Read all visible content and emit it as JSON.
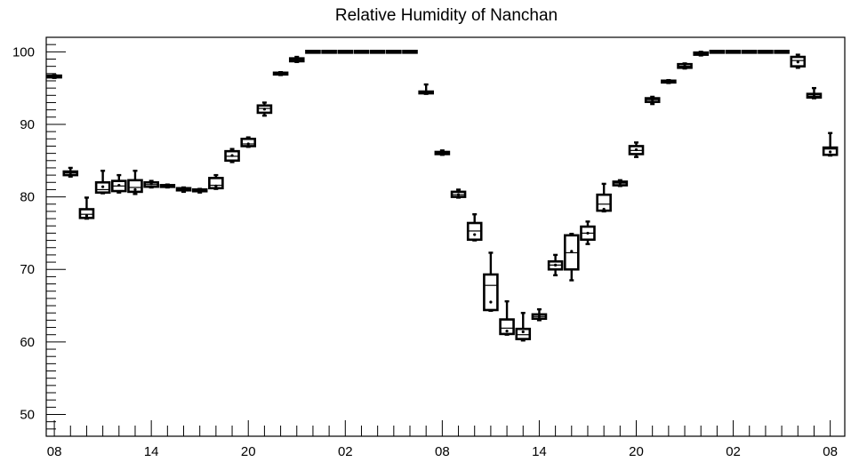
{
  "chart_data": {
    "type": "boxplot",
    "title": "Relative Humidity of Nanchan",
    "xlabel": "",
    "ylabel": "",
    "ylim": [
      47,
      102
    ],
    "yticks": [
      50,
      60,
      70,
      80,
      90,
      100
    ],
    "x_tick_labels": [
      "08",
      "14",
      "20",
      "02",
      "08",
      "14",
      "20",
      "02",
      "08"
    ],
    "x_tick_hours": [
      0,
      6,
      12,
      18,
      24,
      30,
      36,
      42,
      48
    ],
    "xlim": [
      -0.5,
      48.9
    ],
    "grid": false,
    "boxes": [
      {
        "hour": 0,
        "min": 96.4,
        "q1": 96.5,
        "median": 96.6,
        "q3": 96.7,
        "max": 96.8,
        "mean": 96.6
      },
      {
        "hour": 1,
        "min": 82.8,
        "q1": 83.0,
        "median": 83.3,
        "q3": 83.5,
        "max": 84.0,
        "mean": 83.3
      },
      {
        "hour": 2,
        "min": 77.0,
        "q1": 77.1,
        "median": 77.6,
        "q3": 78.3,
        "max": 79.9,
        "mean": 77.4
      },
      {
        "hour": 3,
        "min": 80.5,
        "q1": 80.6,
        "median": 81.0,
        "q3": 82.0,
        "max": 83.6,
        "mean": 81.4
      },
      {
        "hour": 4,
        "min": 80.6,
        "q1": 80.8,
        "median": 81.5,
        "q3": 82.2,
        "max": 83.0,
        "mean": 81.6
      },
      {
        "hour": 5,
        "min": 80.4,
        "q1": 80.7,
        "median": 81.3,
        "q3": 82.3,
        "max": 83.6,
        "mean": 81.0
      },
      {
        "hour": 6,
        "min": 81.3,
        "q1": 81.4,
        "median": 81.7,
        "q3": 82.0,
        "max": 82.2,
        "mean": 81.8
      },
      {
        "hour": 7,
        "min": 81.3,
        "q1": 81.4,
        "median": 81.5,
        "q3": 81.6,
        "max": 81.7,
        "mean": 81.5
      },
      {
        "hour": 8,
        "min": 80.7,
        "q1": 80.9,
        "median": 81.0,
        "q3": 81.2,
        "max": 81.3,
        "mean": 81.0
      },
      {
        "hour": 9,
        "min": 80.6,
        "q1": 80.8,
        "median": 80.9,
        "q3": 81.0,
        "max": 81.1,
        "mean": 80.9
      },
      {
        "hour": 10,
        "min": 81.1,
        "q1": 81.2,
        "median": 81.6,
        "q3": 82.6,
        "max": 83.0,
        "mean": 81.5
      },
      {
        "hour": 11,
        "min": 84.8,
        "q1": 85.0,
        "median": 85.6,
        "q3": 86.3,
        "max": 86.6,
        "mean": 85.7
      },
      {
        "hour": 12,
        "min": 86.9,
        "q1": 87.0,
        "median": 87.3,
        "q3": 88.0,
        "max": 88.2,
        "mean": 87.3
      },
      {
        "hour": 13,
        "min": 91.2,
        "q1": 91.6,
        "median": 92.2,
        "q3": 92.6,
        "max": 93.0,
        "mean": 92.1
      },
      {
        "hour": 14,
        "min": 96.8,
        "q1": 96.9,
        "median": 97.0,
        "q3": 97.1,
        "max": 97.2,
        "mean": 97.0
      },
      {
        "hour": 15,
        "min": 98.6,
        "q1": 98.7,
        "median": 98.9,
        "q3": 99.1,
        "max": 99.3,
        "mean": 98.9
      },
      {
        "hour": 16,
        "min": 100,
        "q1": 100,
        "median": 100,
        "q3": 100,
        "max": 100,
        "mean": 100
      },
      {
        "hour": 17,
        "min": 100,
        "q1": 100,
        "median": 100,
        "q3": 100,
        "max": 100,
        "mean": 100
      },
      {
        "hour": 18,
        "min": 100,
        "q1": 100,
        "median": 100,
        "q3": 100,
        "max": 100,
        "mean": 100
      },
      {
        "hour": 19,
        "min": 100,
        "q1": 100,
        "median": 100,
        "q3": 100,
        "max": 100,
        "mean": 100
      },
      {
        "hour": 20,
        "min": 100,
        "q1": 100,
        "median": 100,
        "q3": 100,
        "max": 100,
        "mean": 100
      },
      {
        "hour": 21,
        "min": 100,
        "q1": 100,
        "median": 100,
        "q3": 100,
        "max": 100,
        "mean": 100
      },
      {
        "hour": 22,
        "min": 100,
        "q1": 100,
        "median": 100,
        "q3": 100,
        "max": 100,
        "mean": 100
      },
      {
        "hour": 23,
        "min": 94.2,
        "q1": 94.3,
        "median": 94.4,
        "q3": 94.5,
        "max": 95.5,
        "mean": 94.4
      },
      {
        "hour": 24,
        "min": 85.8,
        "q1": 85.9,
        "median": 86.0,
        "q3": 86.2,
        "max": 86.4,
        "mean": 86.0
      },
      {
        "hour": 25,
        "min": 79.9,
        "q1": 80.0,
        "median": 80.3,
        "q3": 80.7,
        "max": 81.0,
        "mean": 80.3
      },
      {
        "hour": 26,
        "min": 74.0,
        "q1": 74.1,
        "median": 75.3,
        "q3": 76.4,
        "max": 77.6,
        "mean": 74.8
      },
      {
        "hour": 27,
        "min": 64.3,
        "q1": 64.4,
        "median": 67.8,
        "q3": 69.3,
        "max": 72.3,
        "mean": 65.5
      },
      {
        "hour": 28,
        "min": 61.0,
        "q1": 61.1,
        "median": 61.9,
        "q3": 63.1,
        "max": 65.6,
        "mean": 61.5
      },
      {
        "hour": 29,
        "min": 60.2,
        "q1": 60.4,
        "median": 61.0,
        "q3": 61.8,
        "max": 64.0,
        "mean": 61.4
      },
      {
        "hour": 30,
        "min": 63.0,
        "q1": 63.2,
        "median": 63.5,
        "q3": 63.8,
        "max": 64.5,
        "mean": 63.5
      },
      {
        "hour": 31,
        "min": 69.2,
        "q1": 70.0,
        "median": 70.6,
        "q3": 71.1,
        "max": 72.0,
        "mean": 70.6
      },
      {
        "hour": 32,
        "min": 68.5,
        "q1": 70.0,
        "median": 72.3,
        "q3": 74.7,
        "max": 74.9,
        "mean": 72.5
      },
      {
        "hour": 33,
        "min": 73.5,
        "q1": 74.1,
        "median": 75.0,
        "q3": 75.9,
        "max": 76.6,
        "mean": 75.0
      },
      {
        "hour": 34,
        "min": 78.0,
        "q1": 78.1,
        "median": 79.0,
        "q3": 80.3,
        "max": 81.8,
        "mean": 78.3
      },
      {
        "hour": 35,
        "min": 81.5,
        "q1": 81.6,
        "median": 81.9,
        "q3": 82.1,
        "max": 82.3,
        "mean": 81.9
      },
      {
        "hour": 36,
        "min": 85.5,
        "q1": 85.9,
        "median": 86.4,
        "q3": 87.0,
        "max": 87.5,
        "mean": 86.5
      },
      {
        "hour": 37,
        "min": 92.8,
        "q1": 93.1,
        "median": 93.4,
        "q3": 93.6,
        "max": 93.8,
        "mean": 93.4
      },
      {
        "hour": 38,
        "min": 95.7,
        "q1": 95.8,
        "median": 95.9,
        "q3": 96.0,
        "max": 96.1,
        "mean": 95.9
      },
      {
        "hour": 39,
        "min": 97.7,
        "q1": 97.8,
        "median": 98.0,
        "q3": 98.3,
        "max": 98.4,
        "mean": 98.0
      },
      {
        "hour": 40,
        "min": 99.5,
        "q1": 99.6,
        "median": 99.8,
        "q3": 99.9,
        "max": 100,
        "mean": 99.8
      },
      {
        "hour": 41,
        "min": 100,
        "q1": 100,
        "median": 100,
        "q3": 100,
        "max": 100,
        "mean": 100
      },
      {
        "hour": 42,
        "min": 100,
        "q1": 100,
        "median": 100,
        "q3": 100,
        "max": 100,
        "mean": 100
      },
      {
        "hour": 43,
        "min": 100,
        "q1": 100,
        "median": 100,
        "q3": 100,
        "max": 100,
        "mean": 100
      },
      {
        "hour": 44,
        "min": 100,
        "q1": 100,
        "median": 100,
        "q3": 100,
        "max": 100,
        "mean": 100
      },
      {
        "hour": 45,
        "min": 100,
        "q1": 100,
        "median": 100,
        "q3": 100,
        "max": 100,
        "mean": 100
      },
      {
        "hour": 46,
        "min": 97.8,
        "q1": 98.0,
        "median": 98.8,
        "q3": 99.3,
        "max": 99.6,
        "mean": 98.6
      },
      {
        "hour": 47,
        "min": 93.6,
        "q1": 93.7,
        "median": 93.9,
        "q3": 94.2,
        "max": 95.0,
        "mean": 93.9
      },
      {
        "hour": 48,
        "min": 85.7,
        "q1": 85.8,
        "median": 86.6,
        "q3": 86.8,
        "max": 88.8,
        "mean": 86.2
      }
    ]
  }
}
